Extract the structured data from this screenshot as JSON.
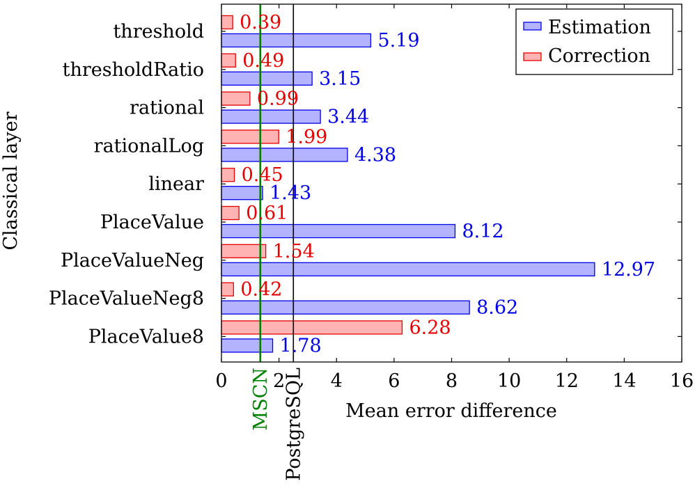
{
  "chart_data": {
    "type": "bar",
    "orientation": "horizontal",
    "xlabel": "Mean error difference",
    "ylabel": "Classical layer",
    "xlim": [
      0,
      16
    ],
    "xticks": [
      "0",
      "2",
      "4",
      "6",
      "8",
      "10",
      "12",
      "14",
      "16"
    ],
    "categories": [
      "threshold",
      "thresholdRatio",
      "rational",
      "rationalLog",
      "linear",
      "PlaceValue",
      "PlaceValueNeg",
      "PlaceValueNeg8",
      "PlaceValue8"
    ],
    "series": [
      {
        "name": "Estimation",
        "color": "#b3b3ff",
        "edge": "#0000e6",
        "values": [
          5.19,
          3.15,
          3.44,
          4.38,
          1.43,
          8.12,
          12.97,
          8.62,
          1.78
        ],
        "labels": [
          "5.19",
          "3.15",
          "3.44",
          "4.38",
          "1.43",
          "8.12",
          "12.97",
          "8.62",
          "1.78"
        ]
      },
      {
        "name": "Correction",
        "color": "#ffb3b3",
        "edge": "#e60000",
        "values": [
          0.39,
          0.49,
          0.99,
          1.99,
          0.45,
          0.61,
          1.54,
          0.42,
          6.28
        ],
        "labels": [
          "0.39",
          "0.49",
          "0.99",
          "1.99",
          "0.45",
          "0.61",
          "1.54",
          "0.42",
          "6.28"
        ]
      }
    ],
    "reference_lines": [
      {
        "name": "MSCN",
        "value": 1.35,
        "color": "#008000"
      },
      {
        "name": "PostgreSQL",
        "value": 2.5,
        "color": "#000000"
      }
    ],
    "legend": "top-right",
    "grid": false
  }
}
